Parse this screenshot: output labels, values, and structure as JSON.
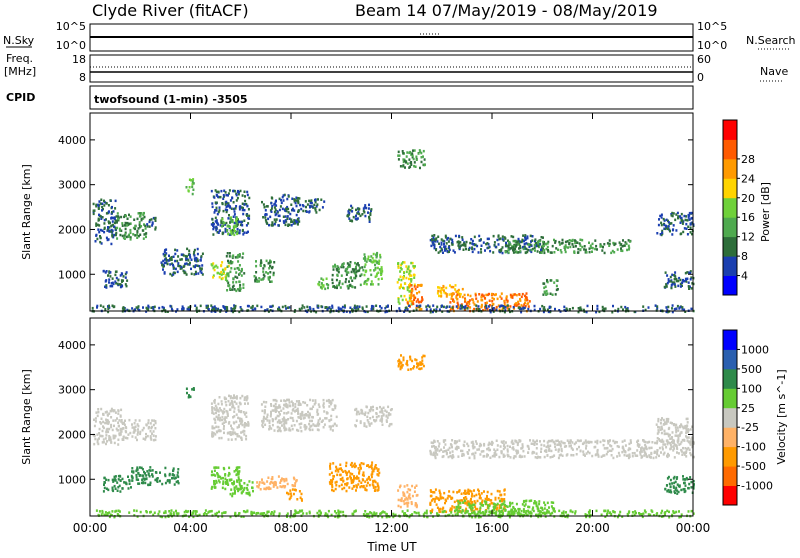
{
  "header": {
    "station": "Clyde River (fitACF)",
    "beam_date": "Beam 14 07/May/2019 - 08/May/2019"
  },
  "top_panel": {
    "nsky_label": "N.Sky",
    "nsky_tick_top": "10^5",
    "nsky_tick_bottom": "10^0",
    "right_tick_top": "10^5",
    "right_tick_bottom": "10^0",
    "nsearch_label": "N.Search",
    "freq_label": "Freq.",
    "freq_unit": "[MHz]",
    "freq_tick_top": "18",
    "freq_tick_bottom": "8",
    "nave_tick_top": "60",
    "nave_tick_bottom": "0",
    "nave_label": "Nave",
    "cpid_label": "CPID",
    "cpid_text": "twofsound (1-min) -3505"
  },
  "colors": {
    "power": [
      "#0000ff",
      "#1b3fb0",
      "#2e6e3a",
      "#4faa4f",
      "#6fd13a",
      "#ffd400",
      "#ff9a00",
      "#ff5a00",
      "#ff0000"
    ],
    "velocity": [
      "#ff0000",
      "#ff6a00",
      "#ff9a00",
      "#ffb266",
      "#c8c8c0",
      "#66cc33",
      "#2e8a4a",
      "#2a5fb0",
      "#0000ff"
    ]
  },
  "chart_data": [
    {
      "type": "heatmap",
      "title": "",
      "xlabel": "",
      "ylabel": "Slant Range [km]",
      "x_ticks": [
        "00:00",
        "04:00",
        "08:00",
        "12:00",
        "16:00",
        "20:00",
        "00:00"
      ],
      "x_range_hours": [
        0,
        24
      ],
      "y_ticks": [
        1000,
        2000,
        3000,
        4000
      ],
      "ylim": [
        180,
        4600
      ],
      "colorbar": {
        "label": "Power [dB]",
        "ticks": [
          4,
          8,
          12,
          16,
          20,
          24,
          28
        ],
        "range": [
          0,
          32
        ]
      },
      "regions": [
        {
          "t0": 0.1,
          "t1": 1.0,
          "r0": 1700,
          "r1": 2700,
          "v": 8
        },
        {
          "t0": 1.0,
          "t1": 2.2,
          "r0": 1800,
          "r1": 2400,
          "v": 12
        },
        {
          "t0": 2.2,
          "t1": 2.6,
          "r0": 2000,
          "r1": 2300,
          "v": 8
        },
        {
          "t0": 0.5,
          "t1": 1.5,
          "r0": 700,
          "r1": 1100,
          "v": 8
        },
        {
          "t0": 2.8,
          "t1": 4.5,
          "r0": 1000,
          "r1": 1600,
          "v": 8
        },
        {
          "t0": 3.8,
          "t1": 4.1,
          "r0": 2800,
          "r1": 3150,
          "v": 16
        },
        {
          "t0": 4.8,
          "t1": 6.3,
          "r0": 1900,
          "r1": 2900,
          "v": 8
        },
        {
          "t0": 5.2,
          "t1": 5.9,
          "r0": 1900,
          "r1": 2300,
          "v": 16
        },
        {
          "t0": 4.8,
          "t1": 5.5,
          "r0": 900,
          "r1": 1300,
          "v": 20
        },
        {
          "t0": 5.4,
          "t1": 6.1,
          "r0": 650,
          "r1": 1500,
          "v": 12
        },
        {
          "t0": 6.5,
          "t1": 7.3,
          "r0": 850,
          "r1": 1350,
          "v": 12
        },
        {
          "t0": 6.8,
          "t1": 8.3,
          "r0": 2100,
          "r1": 2800,
          "v": 8
        },
        {
          "t0": 8.3,
          "t1": 9.3,
          "r0": 2400,
          "r1": 2700,
          "v": 8
        },
        {
          "t0": 9.0,
          "t1": 9.5,
          "r0": 700,
          "r1": 950,
          "v": 16
        },
        {
          "t0": 9.6,
          "t1": 10.8,
          "r0": 700,
          "r1": 1300,
          "v": 12
        },
        {
          "t0": 10.2,
          "t1": 11.2,
          "r0": 2200,
          "r1": 2600,
          "v": 8
        },
        {
          "t0": 10.8,
          "t1": 11.6,
          "r0": 800,
          "r1": 1500,
          "v": 16
        },
        {
          "t0": 12.2,
          "t1": 13.3,
          "r0": 3400,
          "r1": 3800,
          "v": 12
        },
        {
          "t0": 12.2,
          "t1": 12.9,
          "r0": 350,
          "r1": 1300,
          "v": 20
        },
        {
          "t0": 12.6,
          "t1": 13.2,
          "r0": 200,
          "r1": 800,
          "v": 28
        },
        {
          "t0": 13.8,
          "t1": 14.8,
          "r0": 500,
          "r1": 800,
          "v": 24
        },
        {
          "t0": 14.3,
          "t1": 17.5,
          "r0": 200,
          "r1": 600,
          "v": 28
        },
        {
          "t0": 13.5,
          "t1": 18.0,
          "r0": 1500,
          "r1": 1900,
          "v": 8
        },
        {
          "t0": 16.5,
          "t1": 21.5,
          "r0": 1500,
          "r1": 1800,
          "v": 12
        },
        {
          "t0": 18.0,
          "t1": 18.6,
          "r0": 550,
          "r1": 900,
          "v": 12
        },
        {
          "t0": 22.5,
          "t1": 24.0,
          "r0": 1900,
          "r1": 2400,
          "v": 8
        },
        {
          "t0": 22.8,
          "t1": 24.0,
          "r0": 700,
          "r1": 1100,
          "v": 8
        },
        {
          "t0": 0,
          "t1": 24,
          "r0": 180,
          "r1": 330,
          "v": 8
        }
      ]
    },
    {
      "type": "heatmap",
      "title": "",
      "xlabel": "Time UT",
      "ylabel": "Slant Range [km]",
      "x_ticks": [
        "00:00",
        "04:00",
        "08:00",
        "12:00",
        "16:00",
        "20:00",
        "00:00"
      ],
      "x_range_hours": [
        0,
        24
      ],
      "y_ticks": [
        1000,
        2000,
        3000,
        4000
      ],
      "ylim": [
        180,
        4600
      ],
      "colorbar": {
        "label": "Velocity [m s^-1]",
        "ticks": [
          -1000,
          -500,
          -100,
          -25,
          25,
          100,
          500,
          1000
        ]
      },
      "regions": [
        {
          "t0": 0.1,
          "t1": 1.2,
          "r0": 1800,
          "r1": 2600,
          "v": 0
        },
        {
          "t0": 1.2,
          "t1": 2.6,
          "r0": 1900,
          "r1": 2350,
          "v": 0
        },
        {
          "t0": 0.5,
          "t1": 1.6,
          "r0": 750,
          "r1": 1100,
          "v": 300
        },
        {
          "t0": 1.6,
          "t1": 3.5,
          "r0": 900,
          "r1": 1300,
          "v": 300
        },
        {
          "t0": 3.8,
          "t1": 4.1,
          "r0": 2850,
          "r1": 3100,
          "v": 300
        },
        {
          "t0": 4.8,
          "t1": 6.3,
          "r0": 1900,
          "r1": 2900,
          "v": 0
        },
        {
          "t0": 4.8,
          "t1": 6.0,
          "r0": 800,
          "r1": 1300,
          "v": 60
        },
        {
          "t0": 5.5,
          "t1": 6.5,
          "r0": 650,
          "r1": 1000,
          "v": 60
        },
        {
          "t0": 6.6,
          "t1": 8.2,
          "r0": 800,
          "r1": 1100,
          "v": -60
        },
        {
          "t0": 6.8,
          "t1": 9.8,
          "r0": 2100,
          "r1": 2800,
          "v": 0
        },
        {
          "t0": 7.8,
          "t1": 8.4,
          "r0": 550,
          "r1": 800,
          "v": -300
        },
        {
          "t0": 9.5,
          "t1": 11.5,
          "r0": 750,
          "r1": 1400,
          "v": -300
        },
        {
          "t0": 10.5,
          "t1": 12.0,
          "r0": 2200,
          "r1": 2650,
          "v": 0
        },
        {
          "t0": 12.2,
          "t1": 13.3,
          "r0": 3450,
          "r1": 3800,
          "v": -300
        },
        {
          "t0": 12.2,
          "t1": 13.0,
          "r0": 400,
          "r1": 900,
          "v": -60
        },
        {
          "t0": 13.5,
          "t1": 16.5,
          "r0": 300,
          "r1": 800,
          "v": -300
        },
        {
          "t0": 14.5,
          "t1": 18.5,
          "r0": 200,
          "r1": 550,
          "v": 60
        },
        {
          "t0": 13.5,
          "t1": 24.0,
          "r0": 1500,
          "r1": 1900,
          "v": 0
        },
        {
          "t0": 22.5,
          "t1": 24.0,
          "r0": 1800,
          "r1": 2400,
          "v": 0
        },
        {
          "t0": 22.8,
          "t1": 24.0,
          "r0": 700,
          "r1": 1100,
          "v": 300
        },
        {
          "t0": 0,
          "t1": 24,
          "r0": 180,
          "r1": 330,
          "v": 60
        }
      ]
    }
  ]
}
